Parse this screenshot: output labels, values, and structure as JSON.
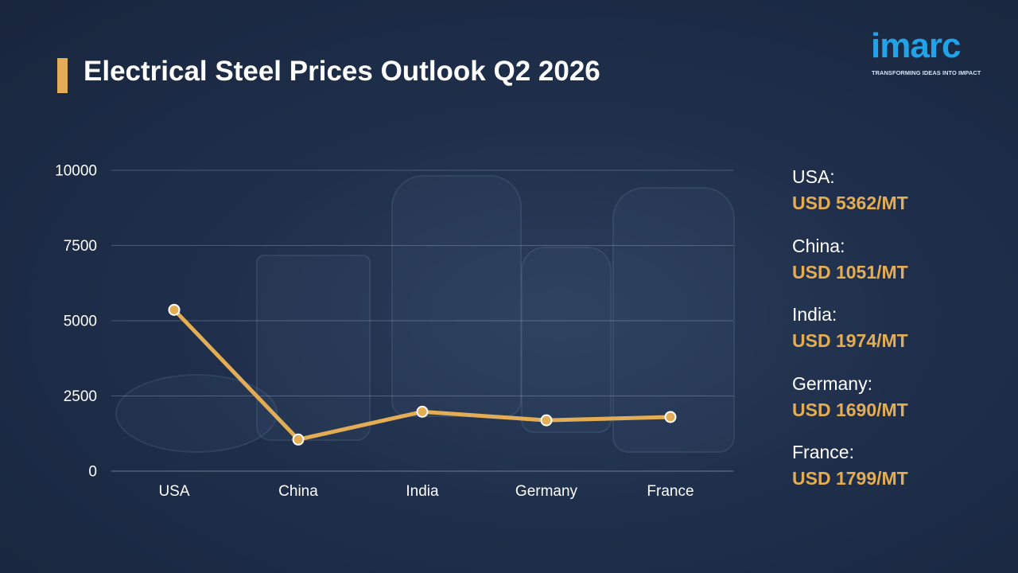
{
  "title": "Electrical Steel Prices Outlook Q2 2026",
  "logo": {
    "wordmark": "imarc",
    "tagline": "TRANSFORMING IDEAS INTO IMPACT"
  },
  "colors": {
    "accent": "#e3ad55",
    "brand": "#22a3e8",
    "background": "#1f2f4b"
  },
  "chart_data": {
    "type": "line",
    "categories": [
      "USA",
      "China",
      "India",
      "Germany",
      "France"
    ],
    "values": [
      5362,
      1051,
      1974,
      1690,
      1799
    ],
    "ylim": [
      0,
      10000
    ],
    "yticks": [
      "0",
      "2500",
      "5000",
      "7500",
      "10000"
    ],
    "ytick_values": [
      0,
      2500,
      5000,
      7500,
      10000
    ],
    "grid": true,
    "legend_placement": "right"
  },
  "legend": [
    {
      "label": "USA:",
      "value": "USD 5362/MT"
    },
    {
      "label": "China:",
      "value": "USD 1051/MT"
    },
    {
      "label": "India:",
      "value": "USD 1974/MT"
    },
    {
      "label": "Germany:",
      "value": "USD 1690/MT"
    },
    {
      "label": "France:",
      "value": "USD 1799/MT"
    }
  ]
}
